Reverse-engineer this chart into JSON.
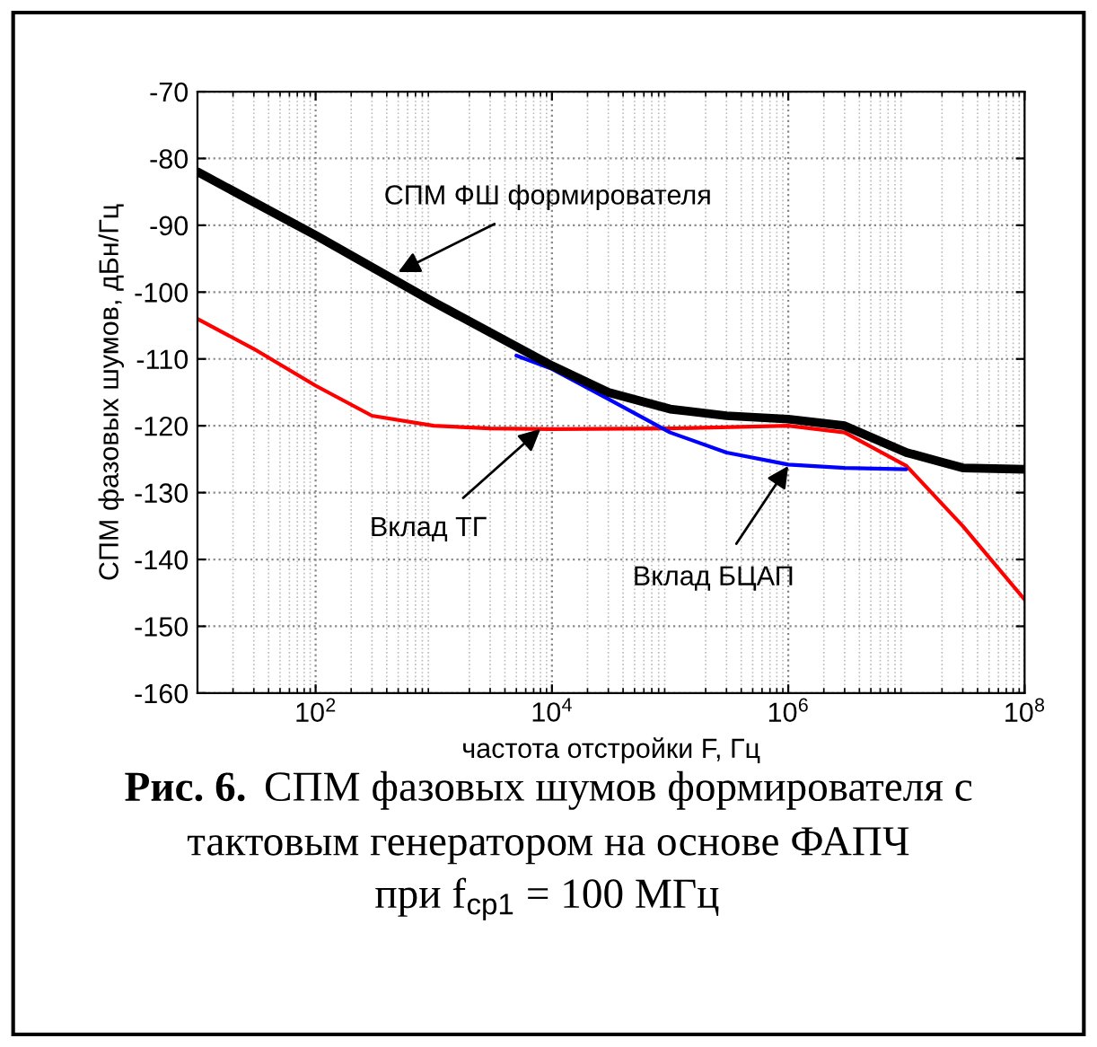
{
  "chart_data": {
    "type": "line",
    "xlabel": "частота отстройки F, Гц",
    "ylabel": "СПМ фазовых шумов, дБн/Гц",
    "log": "x",
    "xlim": [
      10,
      100000000
    ],
    "xticks": [
      {
        "value": 100,
        "label": "10$^{2}$"
      },
      {
        "value": 10000,
        "label": "10$^{4}$"
      },
      {
        "value": 1000000,
        "label": "10$^{6}$"
      },
      {
        "value": 100000000,
        "label": "10$^{8}$"
      }
    ],
    "ylim": [
      -160,
      -70
    ],
    "yticks": [
      -160,
      -150,
      -140,
      -130,
      -120,
      -110,
      -100,
      -90,
      -80,
      -70
    ],
    "grid": true,
    "line_style": "solid",
    "series": [
      {
        "color": "#ff0000",
        "x": [
          10,
          30,
          100,
          300,
          1000,
          3000,
          10000,
          100000,
          1000000,
          3000000,
          10000000,
          30000000,
          100000000
        ],
        "values": [
          -104,
          -108.5,
          -114,
          -118.5,
          -120,
          -120.4,
          -120.5,
          -120.4,
          -120,
          -121,
          -126,
          -135,
          -146
        ]
      },
      {
        "color": "#0000ff",
        "x": [
          5000,
          10000,
          30000,
          100000,
          300000,
          1000000,
          3000000,
          10000000
        ],
        "values": [
          -109.5,
          -111.5,
          -116,
          -121,
          -124,
          -125.8,
          -126.3,
          -126.5
        ]
      },
      {
        "color": "#000000",
        "x": [
          10,
          100,
          1000,
          10000,
          30000,
          100000,
          300000,
          1000000,
          3000000,
          10000000,
          30000000,
          100000000
        ],
        "values": [
          -82,
          -91.5,
          -101.5,
          -111,
          -115,
          -117.5,
          -118.5,
          -119,
          -120,
          -124,
          -126.3,
          -126.5
        ]
      }
    ],
    "annotations": [
      {
        "text": "СПМ ФШ формирователя",
        "x": 500,
        "y": -97
      },
      {
        "text": "Вклад ТГ",
        "x": 8000,
        "y": -120.5
      },
      {
        "text": "Вклад БЦАП",
        "x": 1000000,
        "y": -126
      },
      "Рис. 6.",
      "СПМ фазовых шумов формирователя с\nтактовым генератором на основе ФАПЧ\nпри f$_{ср1}$ = 100 МГц"
    ]
  }
}
